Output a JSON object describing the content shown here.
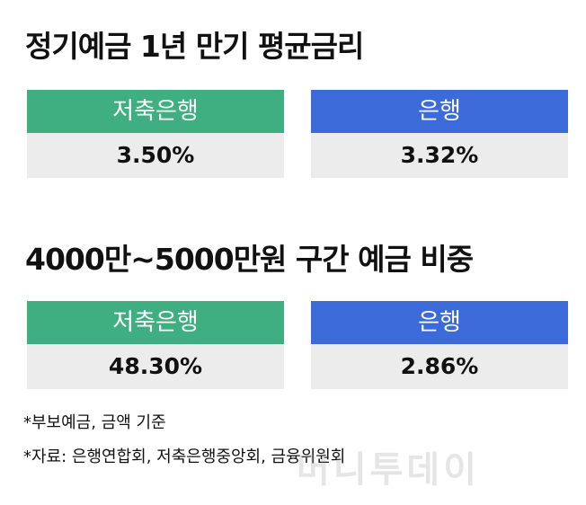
{
  "sections": [
    {
      "title": "정기예금 1년 만기 평균금리",
      "items": [
        {
          "label": "저축은행",
          "value": "3.50%"
        },
        {
          "label": "은행",
          "value": "3.32%"
        }
      ]
    },
    {
      "title": "4000만~5000만원 구간 예금 비중",
      "items": [
        {
          "label": "저축은행",
          "value": "48.30%"
        },
        {
          "label": "은행",
          "value": "2.86%"
        }
      ]
    }
  ],
  "notes": [
    "*부보예금, 금액 기준",
    "*자료: 은행연합회, 저축은행중앙회, 금융위원회"
  ],
  "watermark": "머니투데이"
}
